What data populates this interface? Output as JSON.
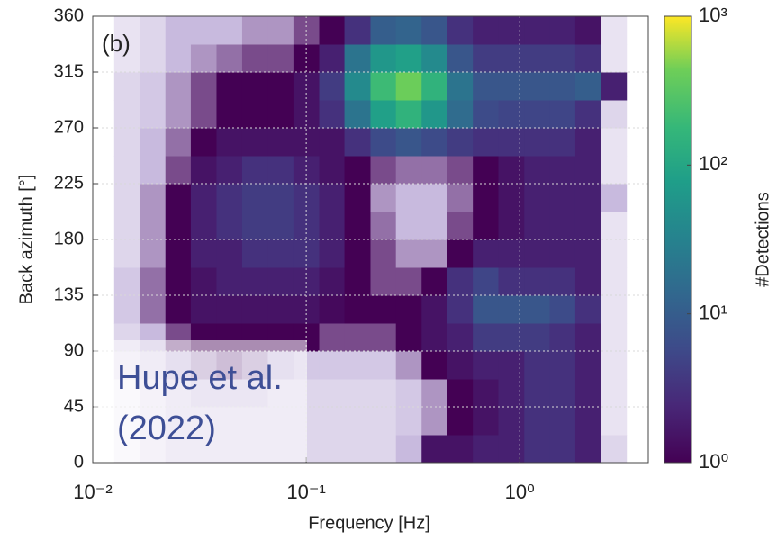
{
  "chart_data": {
    "type": "heatmap",
    "label": "(b)",
    "xlabel": "Frequency [Hz]",
    "ylabel": "Back azimuth [°]",
    "colorbar_label": "#Detections",
    "annotation": [
      "Hupe et al.",
      "(2022)"
    ],
    "xscale": "log",
    "xlim": [
      0.01,
      4
    ],
    "xticks": [
      {
        "value": 0.01,
        "label": "10⁻²"
      },
      {
        "value": 0.1,
        "label": "10⁻¹"
      },
      {
        "value": 1,
        "label": "10⁰"
      }
    ],
    "ylim": [
      0,
      360
    ],
    "yticks": [
      0,
      45,
      90,
      135,
      180,
      225,
      270,
      315,
      360
    ],
    "clim": [
      1,
      1000
    ],
    "cticks": [
      {
        "value": 1,
        "label": "10⁰"
      },
      {
        "value": 10,
        "label": "10¹"
      },
      {
        "value": 100,
        "label": "10²"
      },
      {
        "value": 1000,
        "label": "10³"
      }
    ],
    "grid": true,
    "xbins": [
      0.0126,
      0.0166,
      0.0219,
      0.0288,
      0.038,
      0.0501,
      0.0661,
      0.0871,
      0.115,
      0.151,
      0.2,
      0.263,
      0.347,
      0.457,
      0.603,
      0.794,
      1.05,
      1.38,
      1.82,
      2.4,
      3.16
    ],
    "ybins": [
      0,
      22.5,
      45,
      67.5,
      90,
      112.5,
      135,
      157.5,
      180,
      202.5,
      225,
      247.5,
      270,
      292.5,
      315,
      337.5,
      360
    ],
    "counts": [
      [
        0.1,
        0.2,
        0.3,
        0.3,
        0.3,
        0.3,
        0.3,
        0.3,
        0.3,
        0.3,
        0.3,
        0.5,
        1.5,
        1.5,
        2,
        2,
        3,
        3,
        2,
        0.3
      ],
      [
        0.1,
        0.2,
        0.3,
        0.3,
        0.3,
        0.3,
        0.3,
        0.3,
        0.3,
        0.3,
        0.3,
        0.4,
        0.6,
        1,
        1.5,
        2,
        3,
        3,
        2,
        0.2
      ],
      [
        0.1,
        0.2,
        0.3,
        0.4,
        0.4,
        0.4,
        0.3,
        0.3,
        0.3,
        0.3,
        0.3,
        0.4,
        0.6,
        1,
        1.5,
        2,
        3,
        3,
        2,
        0.2
      ],
      [
        0.2,
        0.3,
        0.5,
        0.6,
        0.7,
        0.6,
        0.5,
        0.4,
        0.4,
        0.4,
        0.4,
        0.6,
        1,
        1.5,
        2,
        2,
        3,
        3,
        2,
        0.2
      ],
      [
        0.3,
        0.5,
        0.8,
        1,
        1,
        1,
        1,
        1,
        0.8,
        0.8,
        0.8,
        1,
        1.5,
        2,
        4,
        4,
        4,
        3,
        2,
        0.2
      ],
      [
        0.4,
        0.7,
        1,
        1.5,
        1.5,
        1.5,
        1.5,
        1.5,
        1.2,
        1,
        1,
        1,
        1.5,
        3,
        8,
        8,
        8,
        6,
        3,
        0.2
      ],
      [
        0.4,
        0.7,
        1,
        1.5,
        2,
        2,
        2,
        2,
        1.5,
        1,
        0.8,
        0.8,
        1,
        3,
        5,
        3,
        3,
        3,
        2,
        0.2
      ],
      [
        0.3,
        0.6,
        1,
        2,
        2,
        3,
        3,
        3,
        2,
        1,
        0.8,
        0.6,
        0.6,
        1,
        2,
        2,
        2,
        2,
        2,
        0.2
      ],
      [
        0.3,
        0.6,
        1,
        2,
        3,
        4,
        4,
        3,
        2,
        1,
        0.7,
        0.5,
        0.5,
        0.8,
        1,
        1.5,
        2,
        2,
        2,
        0.2
      ],
      [
        0.3,
        0.6,
        1,
        2,
        3,
        4,
        4,
        3,
        2,
        1,
        0.6,
        0.5,
        0.5,
        0.7,
        1,
        1.5,
        2,
        2,
        2,
        0.5
      ],
      [
        0.3,
        0.5,
        0.8,
        1.5,
        2,
        3,
        3,
        2,
        1.5,
        1,
        0.8,
        0.7,
        0.7,
        0.8,
        1,
        1.5,
        2,
        2,
        2,
        0.2
      ],
      [
        0.3,
        0.5,
        0.7,
        1,
        1.5,
        1.5,
        1.5,
        1.5,
        1.5,
        3,
        6,
        8,
        6,
        4,
        3,
        3,
        3,
        3,
        2,
        0.2
      ],
      [
        0.3,
        0.4,
        0.6,
        0.8,
        1,
        1,
        1,
        1.5,
        3,
        20,
        80,
        150,
        60,
        15,
        6,
        5,
        5,
        5,
        3,
        0.3
      ],
      [
        0.3,
        0.4,
        0.6,
        0.8,
        1,
        1,
        1,
        1.5,
        4,
        40,
        200,
        400,
        150,
        20,
        8,
        8,
        8,
        8,
        10,
        2
      ],
      [
        0.2,
        0.3,
        0.5,
        0.6,
        0.7,
        0.8,
        0.8,
        1,
        2,
        20,
        60,
        80,
        40,
        8,
        4,
        4,
        4,
        4,
        3,
        0.2
      ],
      [
        0.2,
        0.3,
        0.5,
        0.5,
        0.5,
        0.6,
        0.6,
        0.8,
        1,
        3,
        10,
        12,
        8,
        3,
        2,
        2,
        2,
        2,
        1.5,
        0.2
      ]
    ]
  }
}
